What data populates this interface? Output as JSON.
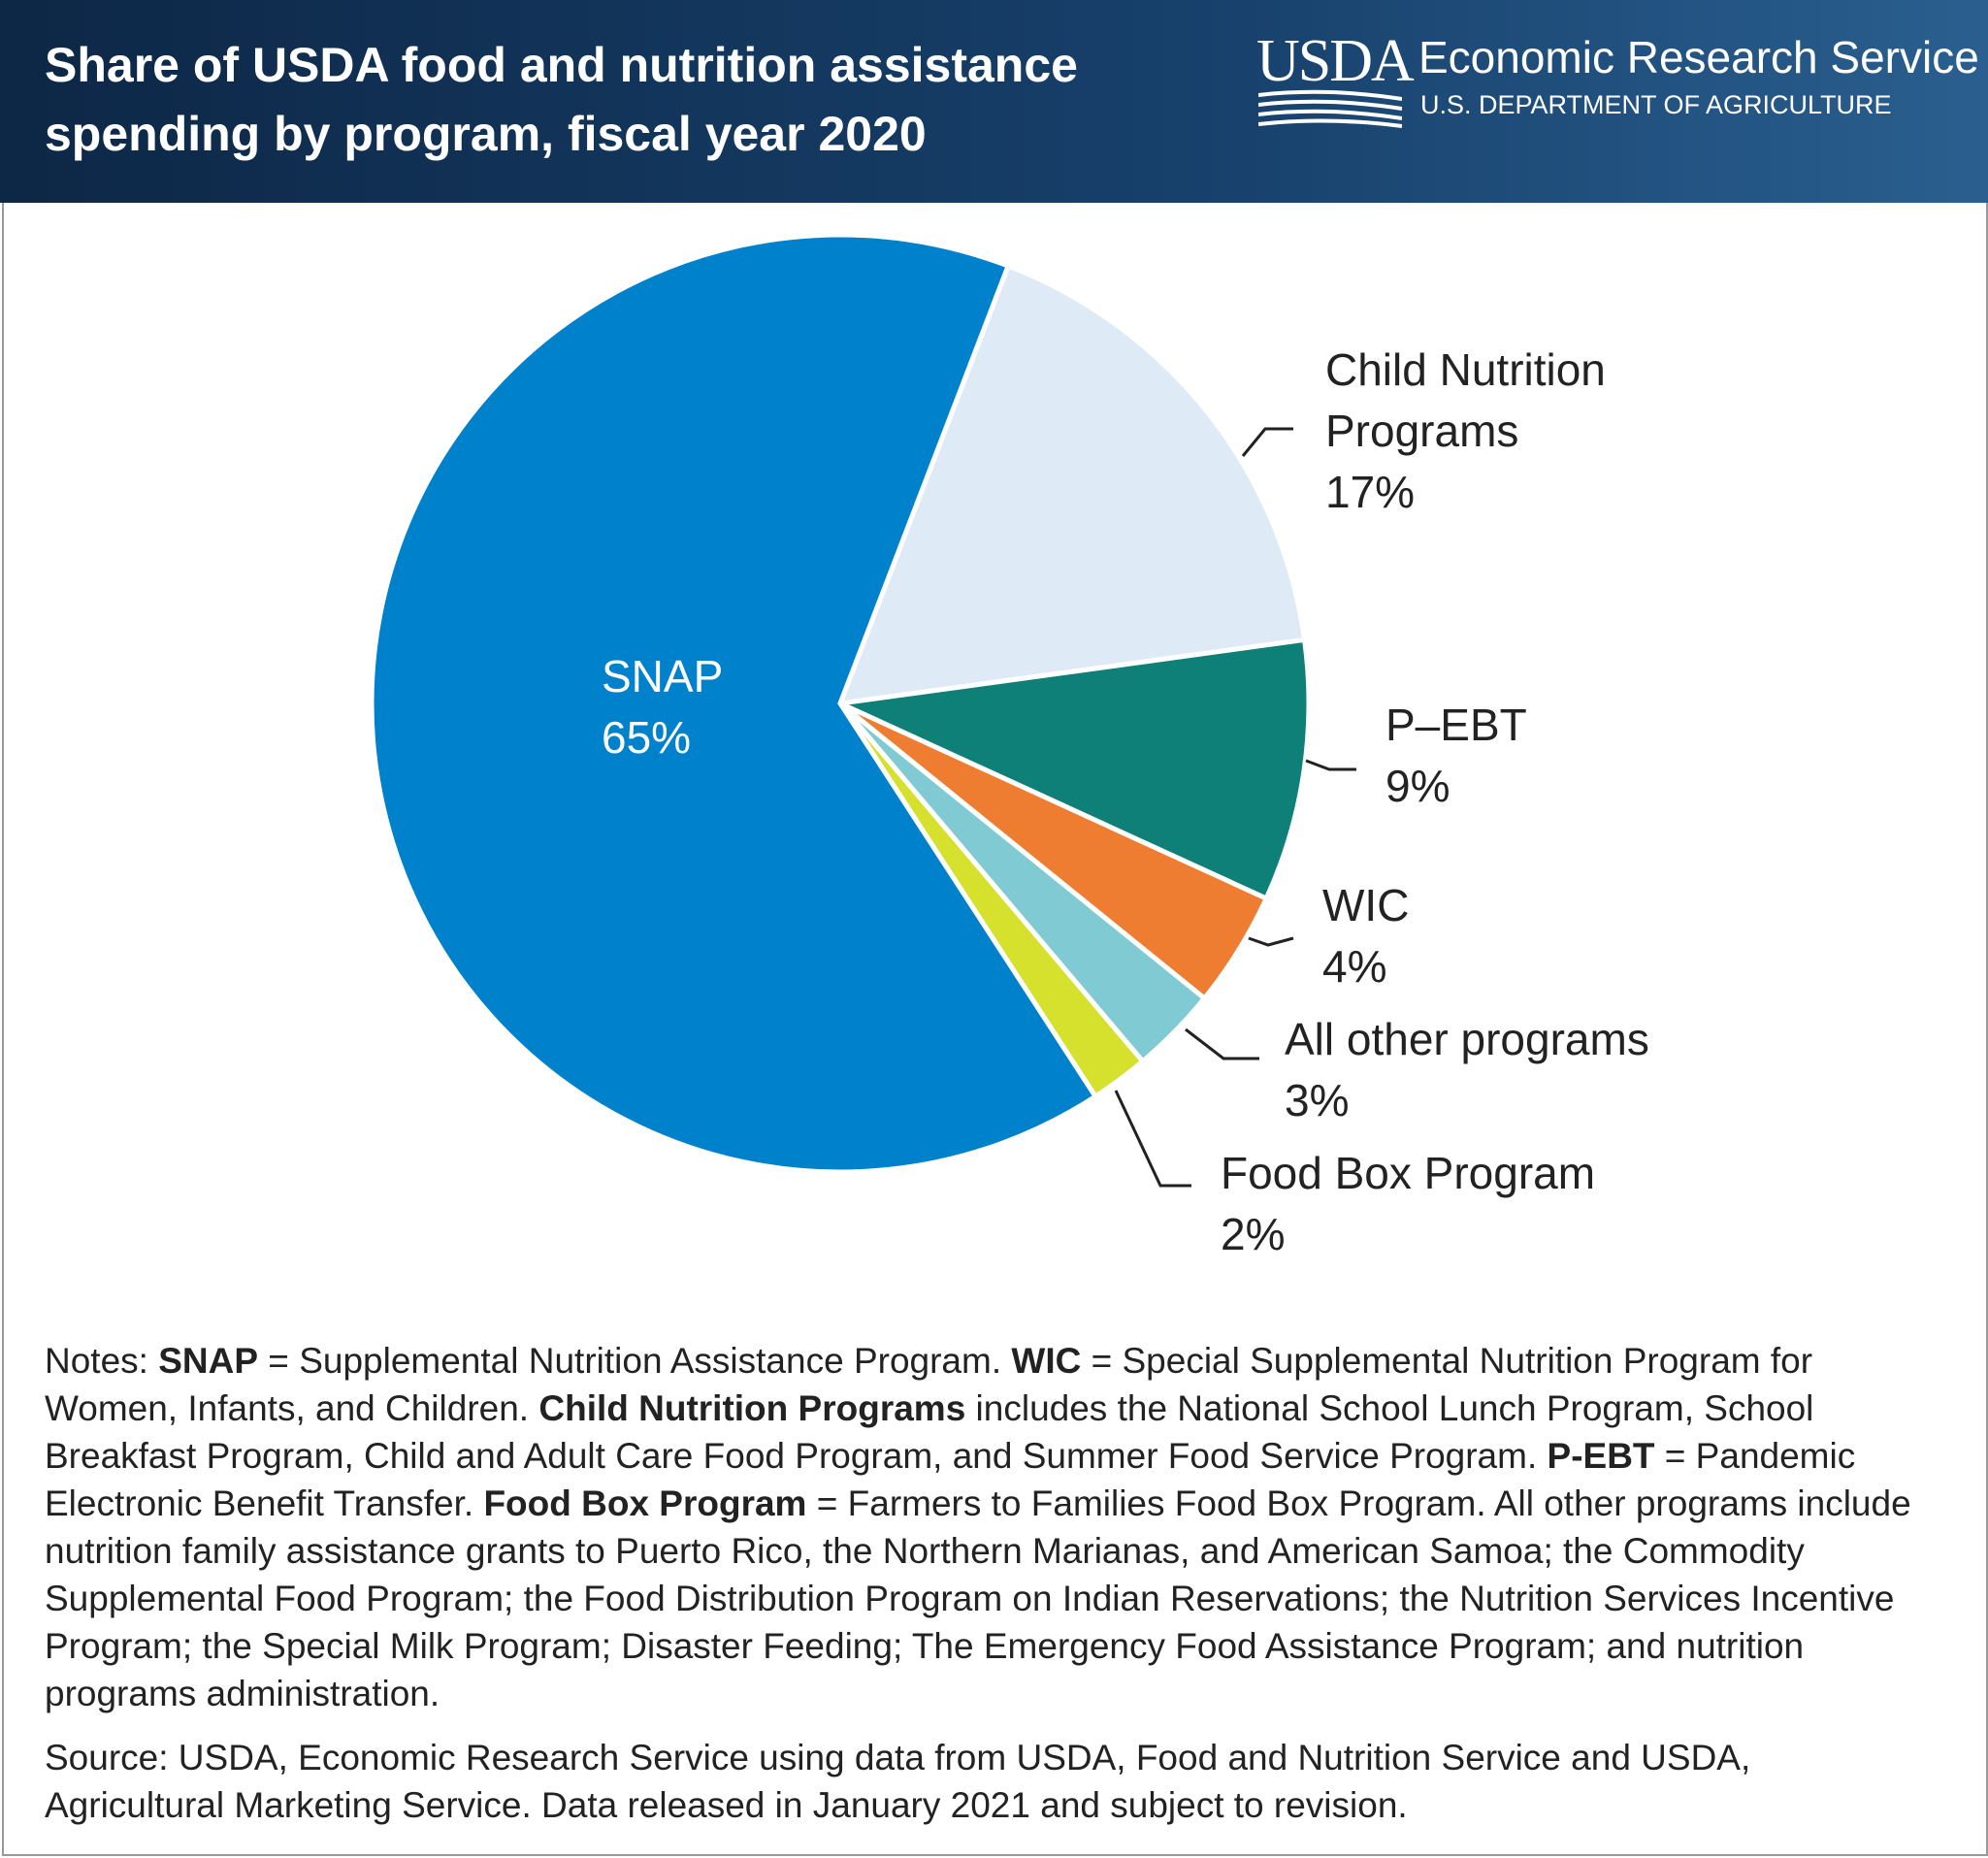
{
  "header": {
    "logo": "USDA",
    "agency": "Economic Research Service",
    "department": "U.S. DEPARTMENT OF AGRICULTURE"
  },
  "chart_data": {
    "type": "pie",
    "title": "Share of USDA food and nutrition assistance spending by program, fiscal year 2020",
    "categories": [
      "Child Nutrition Programs",
      "P–EBT",
      "WIC",
      "All other programs",
      "Food Box Program",
      "SNAP"
    ],
    "values": [
      17,
      9,
      4,
      3,
      2,
      65
    ],
    "value_labels": [
      "17%",
      "9%",
      "4%",
      "3%",
      "2%",
      "65%"
    ],
    "colors": [
      "#dfeaf7",
      "#0e8078",
      "#ee7d31",
      "#7fcad3",
      "#d5e12c",
      "#0081cb"
    ]
  },
  "notes": [
    {
      "text": "Notes: "
    },
    {
      "text": "SNAP",
      "bold": true
    },
    {
      "text": " = Supplemental Nutrition Assistance Program. "
    },
    {
      "text": "WIC",
      "bold": true
    },
    {
      "text": " = Special Supplemental Nutrition Program for Women, Infants, and Children. "
    },
    {
      "text": "Child Nutrition Programs",
      "bold": true
    },
    {
      "text": " includes the National School Lunch Program, School Breakfast Program, Child and Adult Care Food Program, and Summer Food Service Program. "
    },
    {
      "text": "P-EBT",
      "bold": true
    },
    {
      "text": " = Pandemic Electronic Benefit Transfer. "
    },
    {
      "text": "Food Box Program",
      "bold": true
    },
    {
      "text": " = Farmers to Families Food Box Program. All other programs include nutrition family assistance grants to Puerto Rico, the Northern Marianas, and American Samoa; the Commodity Supplemental Food Program; the Food Distribution Program on Indian Reservations; the Nutrition Services Incentive Program; the Special Milk Program; Disaster Feeding; The Emergency Food Assistance Program; and nutrition programs administration."
    }
  ],
  "source": "Source: USDA, Economic Research Service using data from USDA, Food and Nutrition Service and USDA, Agricultural Marketing Service. Data released in January 2021 and subject to revision."
}
